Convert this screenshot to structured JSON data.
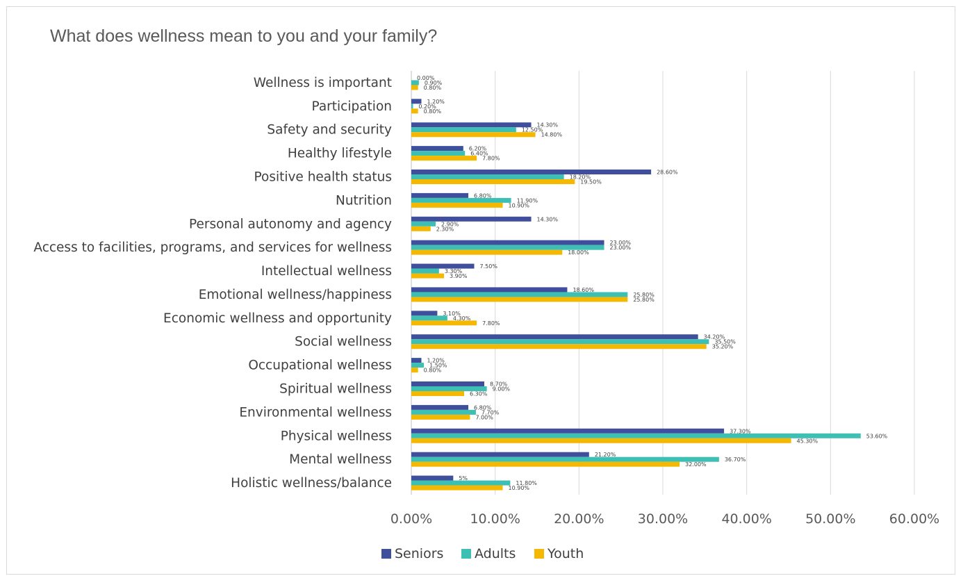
{
  "chart_data": {
    "type": "bar",
    "orientation": "horizontal",
    "title": "What does wellness mean to you and your family?",
    "xlabel": "",
    "ylabel": "",
    "xlim": [
      0,
      60
    ],
    "x_ticks": [
      "0.00%",
      "10.00%",
      "20.00%",
      "30.00%",
      "40.00%",
      "50.00%",
      "60.00%"
    ],
    "grid": "vertical",
    "legend_position": "bottom",
    "categories": [
      "Wellness is important",
      "Participation",
      "Safety and security",
      "Healthy lifestyle",
      "Positive health status",
      "Nutrition",
      "Personal autonomy and agency",
      "Access to facilities, programs, and services for wellness",
      "Intellectual wellness",
      "Emotional wellness/happiness",
      "Economic wellness and opportunity",
      "Social wellness",
      "Occupational wellness",
      "Spiritual wellness",
      "Environmental wellness",
      "Physical wellness",
      "Mental wellness",
      "Holistic wellness/balance"
    ],
    "series": [
      {
        "name": "Seniors",
        "color": "#3f4f9b",
        "values": [
          0.0,
          1.2,
          14.3,
          6.2,
          28.6,
          6.8,
          14.3,
          23.0,
          7.5,
          18.6,
          3.1,
          34.2,
          1.2,
          8.7,
          6.8,
          37.3,
          21.2,
          5.0
        ],
        "labels": [
          "0.00%",
          "1.20%",
          "14.30%",
          "6.20%",
          "28.60%",
          "6.80%",
          "14.30%",
          "23.00%",
          "7.50%",
          "18.60%",
          "3.10%",
          "34.20%",
          "1.20%",
          "8.70%",
          "6.80%",
          "37.30%",
          "21.20%",
          "5%"
        ]
      },
      {
        "name": "Adults",
        "color": "#3dbfb3",
        "values": [
          0.9,
          0.2,
          12.5,
          6.4,
          18.2,
          11.9,
          2.9,
          23.0,
          3.3,
          25.8,
          4.3,
          35.5,
          1.5,
          9.0,
          7.7,
          53.6,
          36.7,
          11.8
        ],
        "labels": [
          "0.90%",
          "0.20%",
          "12.50%",
          "6.40%",
          "18.20%",
          "11.90%",
          "2.90%",
          "23.00%",
          "3.30%",
          "25.80%",
          "4.30%",
          "35.50%",
          "1.50%",
          "9.00%",
          "7.70%",
          "53.60%",
          "36.70%",
          "11.80%"
        ]
      },
      {
        "name": "Youth",
        "color": "#f5b800",
        "values": [
          0.8,
          0.8,
          14.8,
          7.8,
          19.5,
          10.9,
          2.3,
          18.0,
          3.9,
          25.8,
          7.8,
          35.2,
          0.8,
          6.3,
          7.0,
          45.3,
          32.0,
          10.9
        ],
        "labels": [
          "0.80%",
          "0.80%",
          "14.80%",
          "7.80%",
          "19.50%",
          "10.90%",
          "2.30%",
          "18.00%",
          "3.90%",
          "25.80%",
          "7.80%",
          "35.20%",
          "0.80%",
          "6.30%",
          "7.00%",
          "45.30%",
          "32.00%",
          "10.90%"
        ]
      }
    ]
  }
}
